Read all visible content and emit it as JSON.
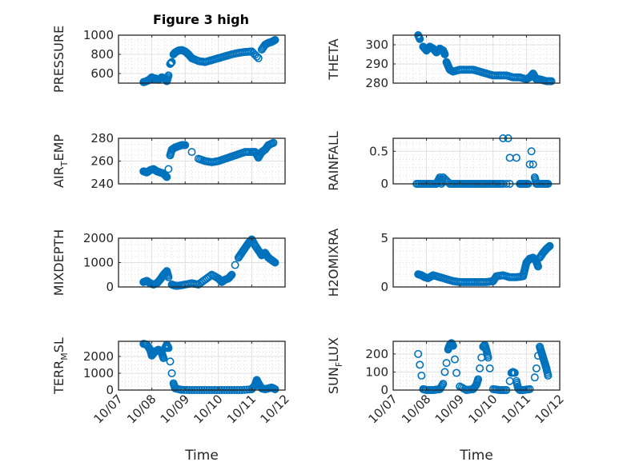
{
  "figure": {
    "title": "Figure 3 high",
    "marker_color": "#0072BD",
    "axis_color": "#262626",
    "grid_color": "#e0e0e0"
  },
  "chart_data": [
    {
      "type": "scatter",
      "id": "pressure",
      "title": "Figure 3 high",
      "ylabel": "PRESSURE",
      "ylabel_sub": "",
      "xlabel": "",
      "xlim": [
        0,
        5
      ],
      "ylim": [
        500,
        1000
      ],
      "yticks": [
        600,
        800,
        1000
      ],
      "xticks": [
        "10/07",
        "10/08",
        "10/09",
        "10/10",
        "10/11",
        "10/12"
      ],
      "show_xticklabels": false,
      "grid": true,
      "x": [
        0.75,
        0.8,
        0.9,
        1.0,
        1.05,
        1.1,
        1.2,
        1.3,
        1.4,
        1.45,
        1.5,
        1.55,
        1.6,
        1.65,
        1.7,
        1.8,
        1.9,
        2.0,
        2.1,
        2.2,
        2.4,
        2.6,
        2.8,
        3.0,
        3.2,
        3.4,
        3.6,
        3.8,
        4.0,
        4.2,
        4.3,
        4.4,
        4.5,
        4.6,
        4.7
      ],
      "y": [
        510,
        515,
        530,
        560,
        540,
        550,
        535,
        560,
        545,
        520,
        580,
        700,
        720,
        800,
        820,
        840,
        845,
        830,
        800,
        760,
        730,
        720,
        740,
        760,
        780,
        800,
        815,
        825,
        830,
        760,
        850,
        900,
        920,
        930,
        950
      ]
    },
    {
      "type": "scatter",
      "id": "theta",
      "title": "",
      "ylabel": "THETA",
      "ylabel_sub": "",
      "xlabel": "",
      "xlim": [
        0,
        5
      ],
      "ylim": [
        280,
        305
      ],
      "yticks": [
        280,
        290,
        300
      ],
      "xticks": [
        "10/07",
        "10/08",
        "10/09",
        "10/10",
        "10/11",
        "10/12"
      ],
      "show_xticklabels": false,
      "grid": true,
      "x": [
        0.75,
        0.8,
        0.9,
        1.0,
        1.1,
        1.2,
        1.3,
        1.4,
        1.5,
        1.55,
        1.6,
        1.65,
        1.7,
        1.8,
        2.0,
        2.2,
        2.4,
        2.6,
        2.8,
        3.0,
        3.2,
        3.4,
        3.6,
        3.8,
        4.0,
        4.1,
        4.2,
        4.3,
        4.4,
        4.6,
        4.75
      ],
      "y": [
        305,
        303,
        299,
        297,
        299,
        298,
        296,
        298,
        297,
        295,
        291,
        289,
        287,
        286,
        287,
        287,
        287,
        286,
        285,
        284,
        284,
        284,
        283,
        283,
        282,
        283,
        285,
        282,
        282,
        281,
        281
      ]
    },
    {
      "type": "scatter",
      "id": "air-temp",
      "title": "",
      "ylabel": "AIR",
      "ylabel_sub": "T",
      "ylabel_tail": "EMP",
      "xlabel": "",
      "xlim": [
        0,
        5
      ],
      "ylim": [
        240,
        280
      ],
      "yticks": [
        240,
        260,
        280
      ],
      "xticks": [
        "10/07",
        "10/08",
        "10/09",
        "10/10",
        "10/11",
        "10/12"
      ],
      "show_xticklabels": false,
      "grid": true,
      "x": [
        0.75,
        0.85,
        0.95,
        1.05,
        1.15,
        1.25,
        1.35,
        1.45,
        1.5,
        1.55,
        1.6,
        1.7,
        1.8,
        1.9,
        2.0,
        2.2,
        2.4,
        2.6,
        2.8,
        3.0,
        3.2,
        3.4,
        3.6,
        3.8,
        4.0,
        4.1,
        4.2,
        4.3,
        4.4,
        4.5,
        4.65
      ],
      "y": [
        251,
        250,
        252,
        253,
        251,
        250,
        249,
        246,
        253,
        265,
        270,
        272,
        273,
        274,
        274,
        268,
        262,
        260,
        259,
        260,
        262,
        264,
        266,
        268,
        268,
        268,
        263,
        268,
        270,
        274,
        276
      ]
    },
    {
      "type": "scatter",
      "id": "rainfall",
      "title": "",
      "ylabel": "RAINFALL",
      "ylabel_sub": "",
      "xlabel": "",
      "xlim": [
        0,
        5
      ],
      "ylim": [
        0,
        0.7
      ],
      "yticks": [
        0,
        0.5
      ],
      "xticks": [
        "10/07",
        "10/08",
        "10/09",
        "10/10",
        "10/11",
        "10/12"
      ],
      "show_xticklabels": false,
      "grid": true,
      "x": [
        0.7,
        0.9,
        1.1,
        1.3,
        1.4,
        1.45,
        1.5,
        1.7,
        1.9,
        2.1,
        2.3,
        2.5,
        2.7,
        2.9,
        3.1,
        3.3,
        3.3,
        3.4,
        3.45,
        3.5,
        3.5,
        3.7,
        3.8,
        3.9,
        4.05,
        4.1,
        4.15,
        4.2,
        4.25,
        4.3,
        4.5,
        4.65
      ],
      "y": [
        0,
        0,
        0,
        0,
        0.1,
        0,
        0.1,
        0,
        0,
        0,
        0,
        0,
        0,
        0,
        0,
        0,
        0.7,
        0,
        0.7,
        0.4,
        0,
        0.4,
        0,
        0,
        0,
        0.3,
        0.5,
        0.3,
        0.1,
        0,
        0,
        0
      ]
    },
    {
      "type": "scatter",
      "id": "mixdepth",
      "title": "",
      "ylabel": "MIXDEPTH",
      "ylabel_sub": "",
      "xlabel": "",
      "xlim": [
        0,
        5
      ],
      "ylim": [
        0,
        2000
      ],
      "yticks": [
        0,
        1000,
        2000
      ],
      "xticks": [
        "10/07",
        "10/08",
        "10/09",
        "10/10",
        "10/11",
        "10/12"
      ],
      "show_xticklabels": false,
      "grid": true,
      "x": [
        0.75,
        0.85,
        0.95,
        1.05,
        1.15,
        1.25,
        1.35,
        1.45,
        1.5,
        1.6,
        1.7,
        1.8,
        2.0,
        2.2,
        2.4,
        2.6,
        2.8,
        3.0,
        3.1,
        3.2,
        3.3,
        3.4,
        3.5,
        3.6,
        3.7,
        3.8,
        3.9,
        4.0,
        4.1,
        4.2,
        4.3,
        4.4,
        4.5,
        4.6,
        4.7
      ],
      "y": [
        200,
        250,
        150,
        100,
        150,
        300,
        500,
        650,
        400,
        100,
        50,
        50,
        100,
        150,
        100,
        300,
        500,
        350,
        200,
        300,
        350,
        500,
        900,
        1200,
        1400,
        1600,
        1800,
        1950,
        1700,
        1500,
        1300,
        1400,
        1200,
        1100,
        1000
      ]
    },
    {
      "type": "scatter",
      "id": "h2omixra",
      "title": "",
      "ylabel": "H2OMIXRA",
      "ylabel_sub": "",
      "xlabel": "",
      "xlim": [
        0,
        5
      ],
      "ylim": [
        0,
        5
      ],
      "yticks": [
        0,
        5
      ],
      "xticks": [
        "10/07",
        "10/08",
        "10/09",
        "10/10",
        "10/11",
        "10/12"
      ],
      "show_xticklabels": false,
      "grid": true,
      "x": [
        0.75,
        0.85,
        0.95,
        1.05,
        1.2,
        1.4,
        1.6,
        1.8,
        2.0,
        2.2,
        2.4,
        2.6,
        2.8,
        3.0,
        3.1,
        3.3,
        3.5,
        3.7,
        3.9,
        3.95,
        4.0,
        4.1,
        4.2,
        4.3,
        4.35,
        4.4,
        4.5,
        4.6,
        4.7
      ],
      "y": [
        1.3,
        1.2,
        1.0,
        0.9,
        1.2,
        1.0,
        0.8,
        0.6,
        0.5,
        0.5,
        0.5,
        0.5,
        0.5,
        0.6,
        1.1,
        1.2,
        1.0,
        1.0,
        1.1,
        1.8,
        2.5,
        2.9,
        3.0,
        2.6,
        2.1,
        3.0,
        3.5,
        3.9,
        4.2
      ]
    },
    {
      "type": "scatter",
      "id": "terr-msl",
      "title": "",
      "ylabel": "TERR",
      "ylabel_sub": "M",
      "ylabel_tail": "SL",
      "xlabel": "Time",
      "xlim": [
        0,
        5
      ],
      "ylim": [
        0,
        2900
      ],
      "yticks": [
        0,
        1000,
        2000
      ],
      "xticks": [
        "10/07",
        "10/08",
        "10/09",
        "10/10",
        "10/11",
        "10/12"
      ],
      "show_xticklabels": true,
      "grid": true,
      "x": [
        0.75,
        0.85,
        0.95,
        1.0,
        1.1,
        1.2,
        1.3,
        1.35,
        1.4,
        1.45,
        1.5,
        1.55,
        1.6,
        1.65,
        1.7,
        1.9,
        2.2,
        2.5,
        2.8,
        3.1,
        3.4,
        3.7,
        4.0,
        4.1,
        4.15,
        4.2,
        4.3,
        4.4,
        4.5,
        4.6,
        4.7
      ],
      "y": [
        2750,
        2700,
        2400,
        2050,
        2300,
        2400,
        2200,
        1900,
        2500,
        2700,
        2500,
        1700,
        1000,
        400,
        100,
        10,
        0,
        0,
        0,
        0,
        0,
        0,
        50,
        300,
        600,
        400,
        100,
        50,
        100,
        150,
        50
      ]
    },
    {
      "type": "scatter",
      "id": "sun-flux",
      "title": "",
      "ylabel": "SUN",
      "ylabel_sub": "F",
      "ylabel_tail": "LUX",
      "xlabel": "Time",
      "xlim": [
        0,
        5
      ],
      "ylim": [
        0,
        270
      ],
      "yticks": [
        0,
        100,
        200
      ],
      "xticks": [
        "10/07",
        "10/08",
        "10/09",
        "10/10",
        "10/11",
        "10/12"
      ],
      "show_xticklabels": true,
      "grid": true,
      "x": [
        0.75,
        0.8,
        0.85,
        0.9,
        1.0,
        1.2,
        1.4,
        1.5,
        1.55,
        1.6,
        1.65,
        1.7,
        1.75,
        1.8,
        1.85,
        1.9,
        2.0,
        2.2,
        2.4,
        2.5,
        2.55,
        2.6,
        2.65,
        2.7,
        2.75,
        2.8,
        2.85,
        2.9,
        3.0,
        3.2,
        3.4,
        3.5,
        3.55,
        3.6,
        3.65,
        3.7,
        3.75,
        3.8,
        3.9,
        4.1,
        4.25,
        4.3,
        4.35,
        4.4,
        4.45,
        4.5,
        4.55,
        4.6,
        4.65
      ],
      "y": [
        200,
        140,
        80,
        5,
        0,
        0,
        5,
        35,
        100,
        150,
        225,
        250,
        260,
        245,
        170,
        95,
        20,
        0,
        5,
        30,
        60,
        120,
        180,
        240,
        250,
        220,
        180,
        120,
        5,
        0,
        0,
        50,
        95,
        100,
        95,
        50,
        10,
        0,
        0,
        5,
        70,
        120,
        190,
        240,
        210,
        180,
        150,
        120,
        80
      ]
    }
  ]
}
